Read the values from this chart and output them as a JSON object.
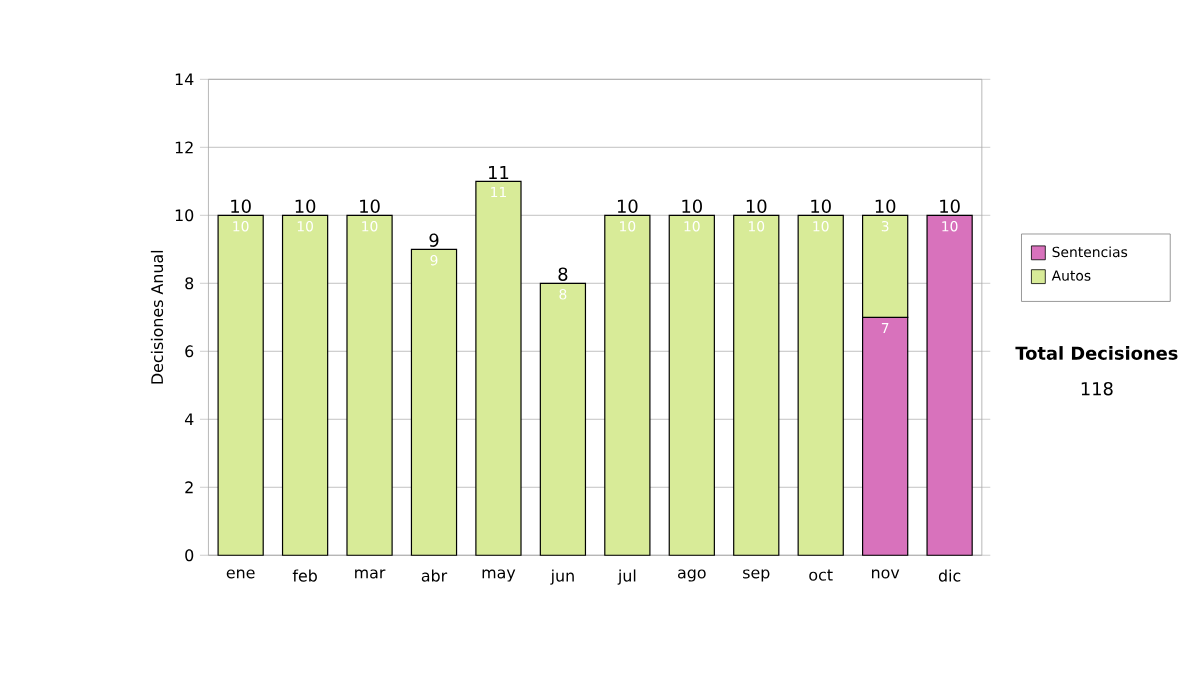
{
  "chart_data": {
    "type": "bar",
    "stacked": true,
    "ylabel": "Decisiones Anual",
    "categories": [
      "ene",
      "feb",
      "mar",
      "abr",
      "may",
      "jun",
      "jul",
      "ago",
      "sep",
      "oct",
      "nov",
      "dic"
    ],
    "series": [
      {
        "name": "Sentencias",
        "color": "#d872bc",
        "values": [
          null,
          null,
          null,
          null,
          null,
          null,
          null,
          null,
          null,
          null,
          7,
          10
        ],
        "value_labels": [
          null,
          null,
          null,
          null,
          null,
          null,
          null,
          null,
          null,
          null,
          "7",
          "10"
        ]
      },
      {
        "name": "Autos",
        "color": "#d8eb98",
        "values": [
          10,
          10,
          10,
          9,
          11,
          8,
          10,
          10,
          10,
          10,
          3,
          null
        ],
        "value_labels": [
          "10",
          "10",
          "10",
          "9",
          "11",
          "8",
          "10",
          "10",
          "10",
          "10",
          "3",
          null
        ]
      }
    ],
    "totals": [
      "10",
      "10",
      "10",
      "9",
      "11",
      "8",
      "10",
      "10",
      "10",
      "10",
      "10",
      "10"
    ],
    "ylim": [
      0,
      14
    ],
    "yticks": [
      0,
      2,
      4,
      6,
      8,
      10,
      12,
      14
    ],
    "grid": "y",
    "legend": "right",
    "annotations": [
      "Total Decisiones",
      "118"
    ]
  }
}
